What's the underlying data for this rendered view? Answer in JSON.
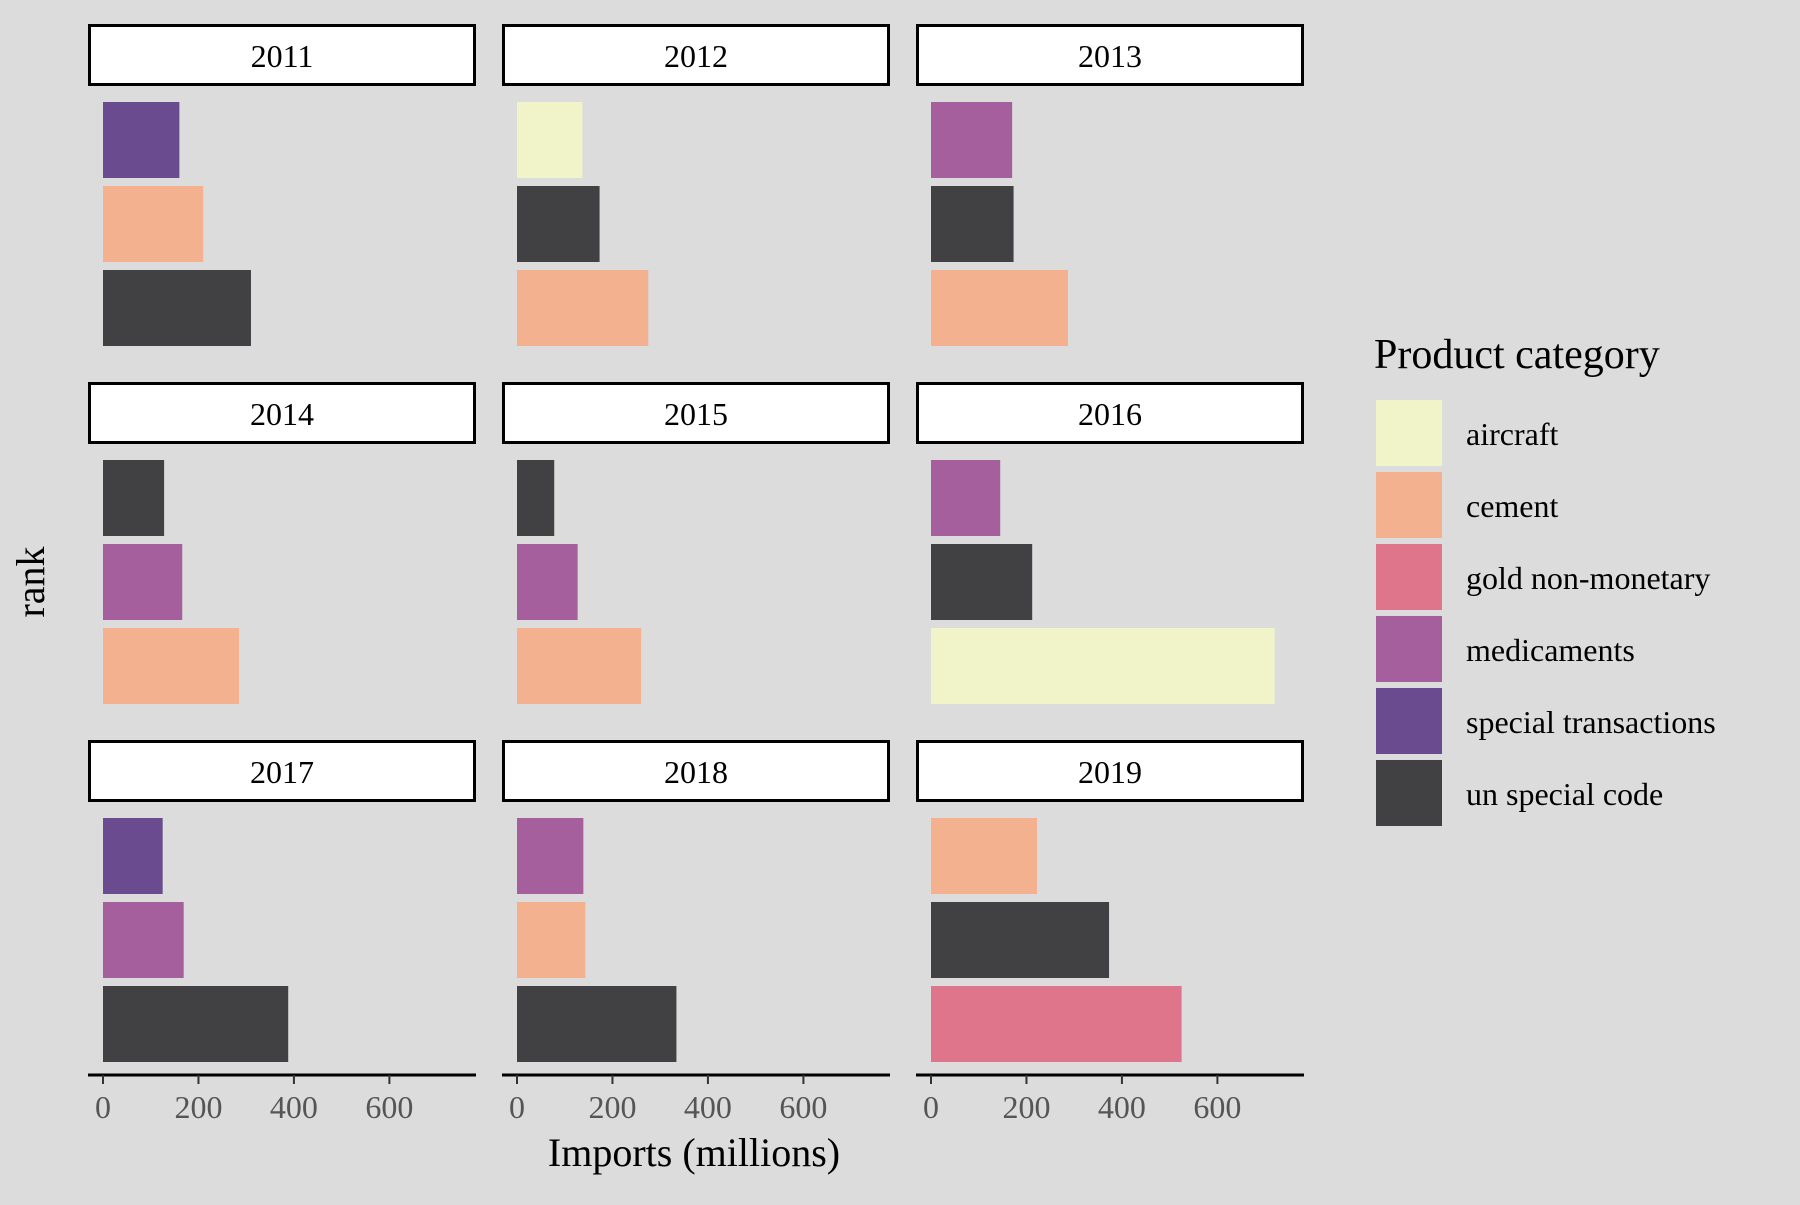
{
  "chart_data": {
    "type": "bar",
    "orientation": "horizontal",
    "facet_by": "year",
    "xlabel": "Imports (millions)",
    "ylabel": "rank",
    "xlim": [
      0,
      750
    ],
    "xticks": [
      0,
      200,
      400,
      600
    ],
    "grid": false,
    "legend": {
      "title": "Product category",
      "placement": "right",
      "entries": [
        {
          "name": "aircraft",
          "color": "#f1f3c8"
        },
        {
          "name": "cement",
          "color": "#f3b18f"
        },
        {
          "name": "gold non-monetary",
          "color": "#de758a"
        },
        {
          "name": "medicaments",
          "color": "#a45f9c"
        },
        {
          "name": "special transactions",
          "color": "#6b4b8f"
        },
        {
          "name": "un special code",
          "color": "#414143"
        }
      ]
    },
    "panels": [
      {
        "year": "2011",
        "bars": [
          {
            "category": "special transactions",
            "value": 160
          },
          {
            "category": "cement",
            "value": 210
          },
          {
            "category": "un special code",
            "value": 310
          }
        ]
      },
      {
        "year": "2012",
        "bars": [
          {
            "category": "aircraft",
            "value": 137
          },
          {
            "category": "un special code",
            "value": 173
          },
          {
            "category": "cement",
            "value": 275
          }
        ]
      },
      {
        "year": "2013",
        "bars": [
          {
            "category": "medicaments",
            "value": 170
          },
          {
            "category": "un special code",
            "value": 173
          },
          {
            "category": "cement",
            "value": 287
          }
        ]
      },
      {
        "year": "2014",
        "bars": [
          {
            "category": "un special code",
            "value": 128
          },
          {
            "category": "medicaments",
            "value": 166
          },
          {
            "category": "cement",
            "value": 285
          }
        ]
      },
      {
        "year": "2015",
        "bars": [
          {
            "category": "un special code",
            "value": 78
          },
          {
            "category": "medicaments",
            "value": 127
          },
          {
            "category": "cement",
            "value": 260
          }
        ]
      },
      {
        "year": "2016",
        "bars": [
          {
            "category": "medicaments",
            "value": 145
          },
          {
            "category": "un special code",
            "value": 212
          },
          {
            "category": "aircraft",
            "value": 720
          }
        ]
      },
      {
        "year": "2017",
        "bars": [
          {
            "category": "special transactions",
            "value": 125
          },
          {
            "category": "medicaments",
            "value": 169
          },
          {
            "category": "un special code",
            "value": 388
          }
        ]
      },
      {
        "year": "2018",
        "bars": [
          {
            "category": "medicaments",
            "value": 139
          },
          {
            "category": "cement",
            "value": 143
          },
          {
            "category": "un special code",
            "value": 334
          }
        ]
      },
      {
        "year": "2019",
        "bars": [
          {
            "category": "cement",
            "value": 222
          },
          {
            "category": "un special code",
            "value": 373
          },
          {
            "category": "gold non-monetary",
            "value": 525
          }
        ]
      }
    ]
  }
}
